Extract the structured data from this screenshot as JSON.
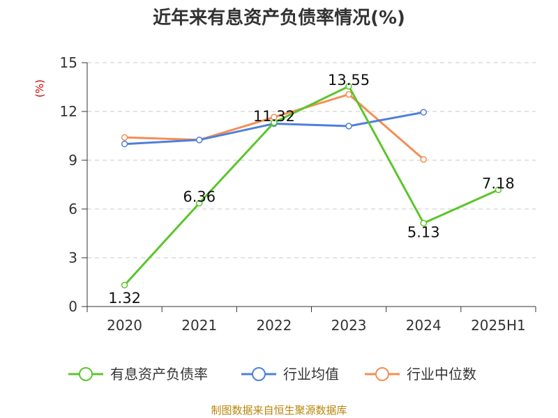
{
  "chart_data": {
    "type": "line",
    "title": "近年来有息资产负债率情况(%)",
    "ylabel": "(%)",
    "categories": [
      "2020",
      "2021",
      "2022",
      "2023",
      "2024",
      "2025H1"
    ],
    "ylim": [
      0,
      15
    ],
    "yticks": [
      0,
      3,
      6,
      9,
      12,
      15
    ],
    "grid": true,
    "legend_position": "bottom",
    "series": [
      {
        "name": "有息资产负债率",
        "color": "#5cc52a",
        "values": [
          1.32,
          6.36,
          11.32,
          13.55,
          5.13,
          7.18
        ],
        "labels": [
          "1.32",
          "6.36",
          "11.32",
          "13.55",
          "5.13",
          "7.18"
        ]
      },
      {
        "name": "行业均值",
        "color": "#4f7fdb",
        "values": [
          10.0,
          10.25,
          11.25,
          11.1,
          11.95,
          null
        ]
      },
      {
        "name": "行业中位数",
        "color": "#f58d55",
        "values": [
          10.4,
          10.25,
          11.65,
          13.05,
          9.05,
          null
        ]
      }
    ]
  },
  "source": "制图数据来自恒生聚源数据库"
}
